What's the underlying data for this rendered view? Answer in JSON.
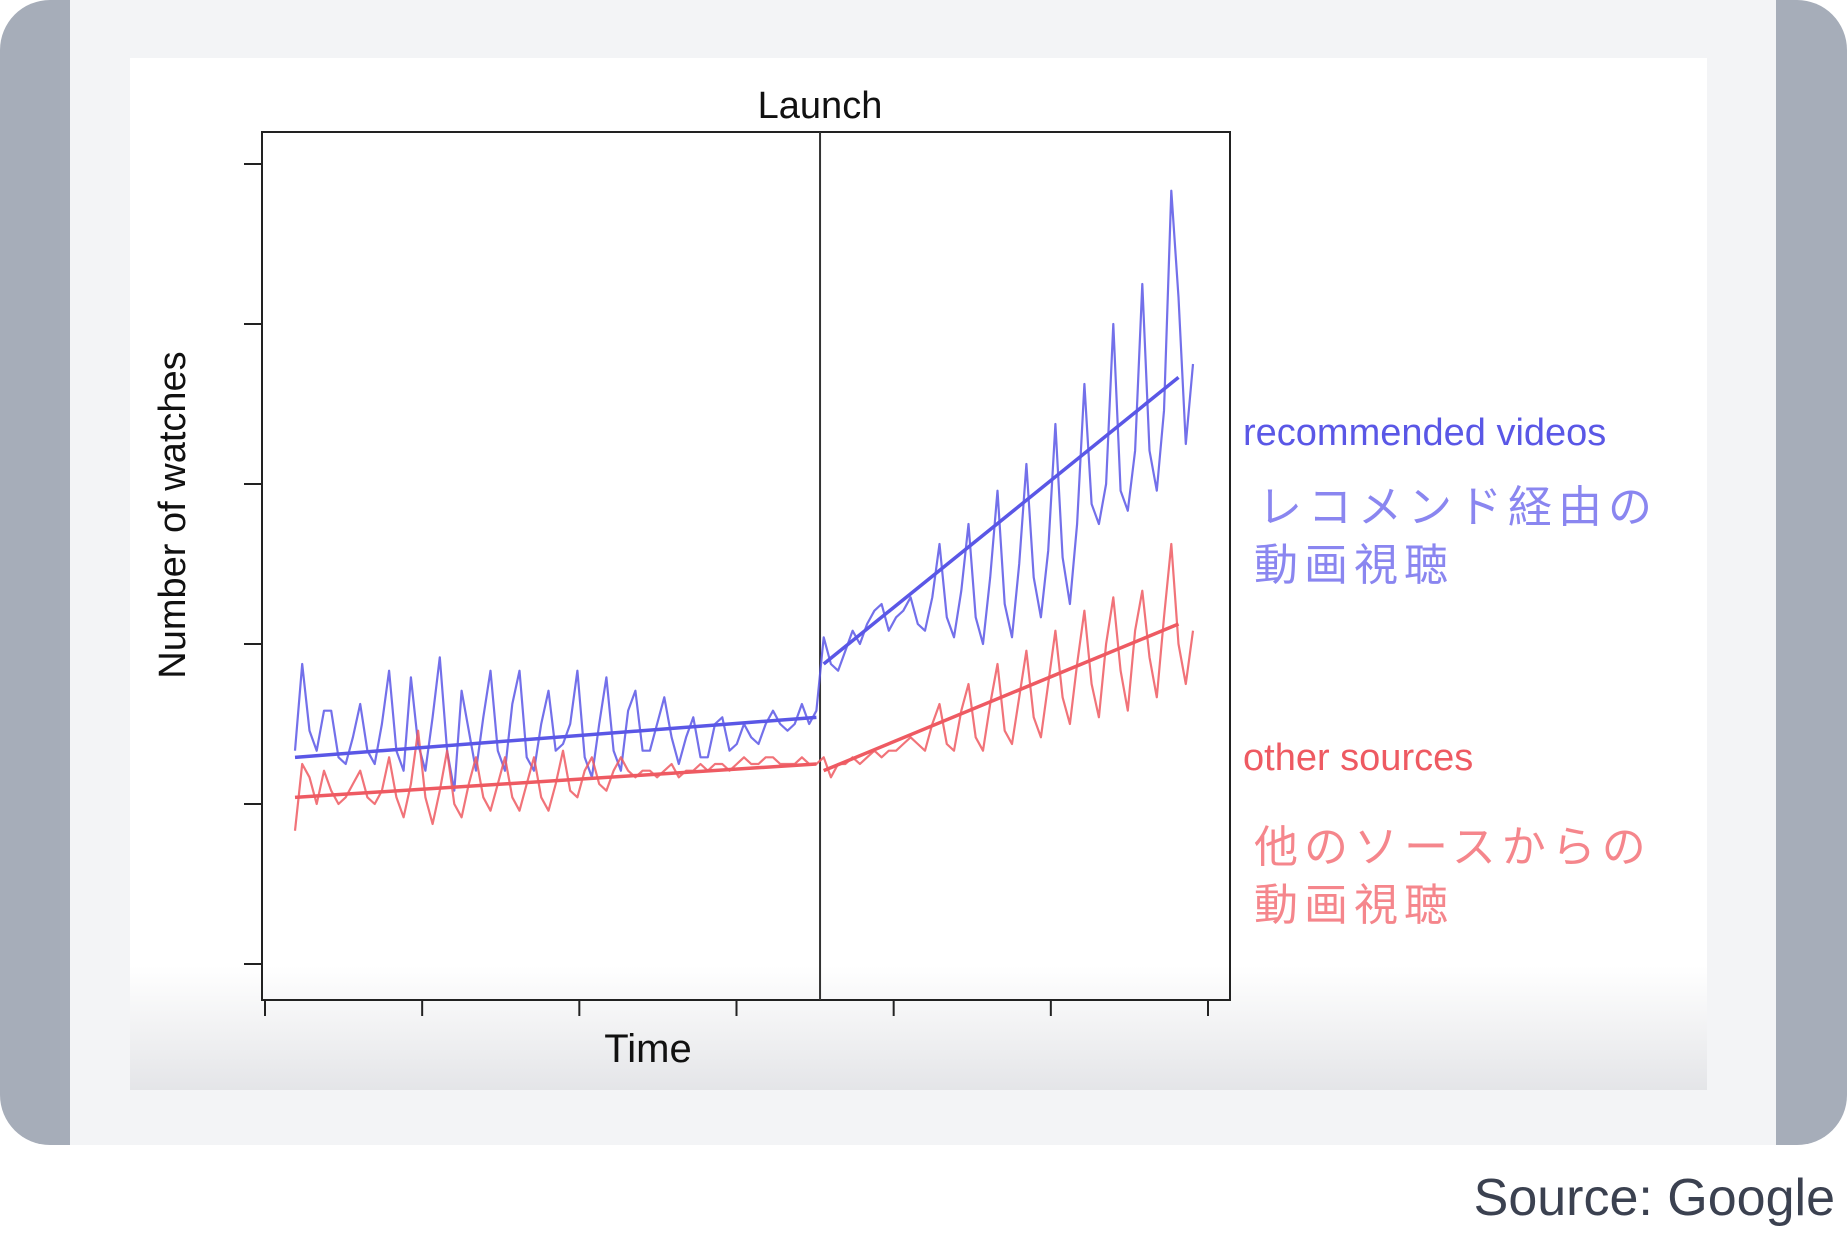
{
  "chart_data": {
    "type": "line",
    "title": "Launch",
    "xlabel": "Time",
    "ylabel": "Number of watches",
    "annotations": [
      "Launch"
    ],
    "series": [
      {
        "name": "recommended videos",
        "name_ja": "レコメンド経由の動画視聴",
        "color": "#5a57e6",
        "values": [
          0.32,
          0.45,
          0.35,
          0.32,
          0.38,
          0.38,
          0.31,
          0.3,
          0.34,
          0.39,
          0.32,
          0.3,
          0.36,
          0.44,
          0.32,
          0.29,
          0.43,
          0.33,
          0.29,
          0.37,
          0.46,
          0.32,
          0.26,
          0.41,
          0.35,
          0.29,
          0.37,
          0.44,
          0.32,
          0.29,
          0.39,
          0.44,
          0.31,
          0.29,
          0.36,
          0.41,
          0.32,
          0.33,
          0.36,
          0.44,
          0.31,
          0.28,
          0.36,
          0.43,
          0.32,
          0.29,
          0.38,
          0.41,
          0.32,
          0.32,
          0.36,
          0.4,
          0.34,
          0.3,
          0.34,
          0.37,
          0.31,
          0.31,
          0.36,
          0.37,
          0.32,
          0.33,
          0.36,
          0.34,
          0.33,
          0.36,
          0.38,
          0.36,
          0.35,
          0.36,
          0.39,
          0.36,
          0.38,
          0.49,
          0.45,
          0.44,
          0.47,
          0.5,
          0.48,
          0.51,
          0.53,
          0.54,
          0.5,
          0.52,
          0.53,
          0.55,
          0.51,
          0.5,
          0.55,
          0.63,
          0.52,
          0.49,
          0.56,
          0.66,
          0.52,
          0.48,
          0.58,
          0.71,
          0.54,
          0.49,
          0.6,
          0.75,
          0.58,
          0.52,
          0.62,
          0.81,
          0.61,
          0.54,
          0.66,
          0.87,
          0.69,
          0.66,
          0.72,
          0.96,
          0.71,
          0.68,
          0.77,
          1.02,
          0.77,
          0.71,
          0.83,
          1.16,
          1.0,
          0.78,
          0.9
        ],
        "trend": [
          [
            0,
            0.31
          ],
          [
            72,
            0.37
          ],
          [
            73,
            0.45
          ],
          [
            122,
            0.88
          ]
        ]
      },
      {
        "name": "other sources",
        "name_ja": "他のソースからの動画視聴",
        "color": "#ee5a62",
        "values": [
          0.2,
          0.3,
          0.28,
          0.24,
          0.29,
          0.26,
          0.24,
          0.25,
          0.27,
          0.29,
          0.25,
          0.24,
          0.26,
          0.31,
          0.25,
          0.22,
          0.27,
          0.35,
          0.25,
          0.21,
          0.26,
          0.32,
          0.24,
          0.22,
          0.27,
          0.31,
          0.25,
          0.23,
          0.27,
          0.31,
          0.25,
          0.23,
          0.27,
          0.31,
          0.25,
          0.23,
          0.27,
          0.32,
          0.26,
          0.25,
          0.29,
          0.31,
          0.27,
          0.26,
          0.29,
          0.31,
          0.29,
          0.28,
          0.29,
          0.29,
          0.28,
          0.29,
          0.3,
          0.28,
          0.29,
          0.29,
          0.3,
          0.29,
          0.3,
          0.3,
          0.29,
          0.3,
          0.31,
          0.3,
          0.3,
          0.31,
          0.31,
          0.3,
          0.3,
          0.3,
          0.31,
          0.3,
          0.3,
          0.31,
          0.28,
          0.3,
          0.3,
          0.31,
          0.3,
          0.31,
          0.32,
          0.31,
          0.32,
          0.32,
          0.33,
          0.34,
          0.33,
          0.32,
          0.36,
          0.39,
          0.33,
          0.32,
          0.38,
          0.42,
          0.34,
          0.32,
          0.39,
          0.45,
          0.35,
          0.33,
          0.4,
          0.47,
          0.37,
          0.34,
          0.42,
          0.5,
          0.4,
          0.36,
          0.45,
          0.53,
          0.42,
          0.37,
          0.48,
          0.55,
          0.44,
          0.38,
          0.5,
          0.56,
          0.46,
          0.4,
          0.52,
          0.63,
          0.48,
          0.42,
          0.5
        ],
        "trend": [
          [
            0,
            0.25
          ],
          [
            72,
            0.3
          ],
          [
            73,
            0.29
          ],
          [
            122,
            0.51
          ]
        ]
      }
    ],
    "launch_index": 72.5,
    "ylim": [
      0,
      1.2
    ],
    "x_ticks": 7,
    "y_ticks": 6,
    "x_tick_labels": [],
    "y_tick_labels": [],
    "grid": false,
    "legend": "right"
  },
  "source": "Source: Google"
}
